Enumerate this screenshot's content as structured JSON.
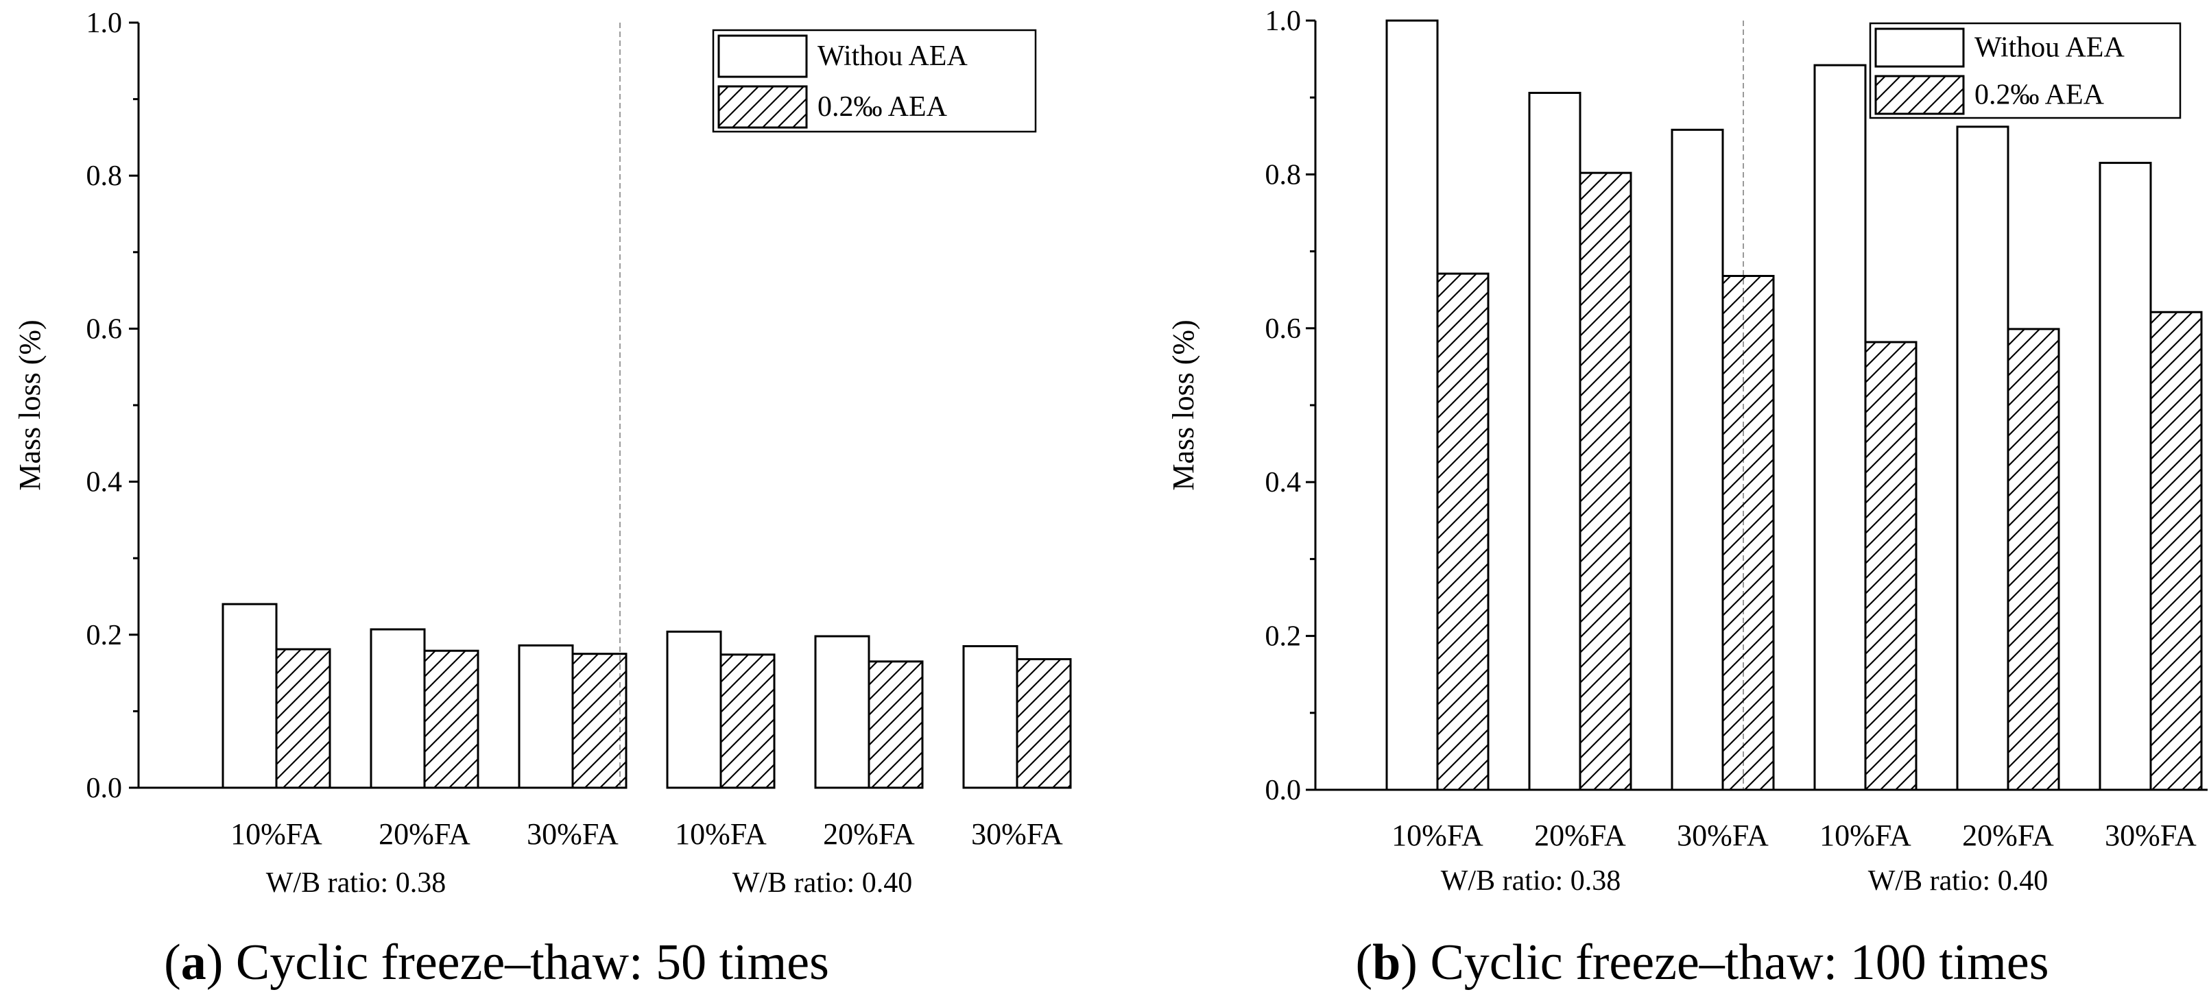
{
  "chart_data": [
    {
      "type": "bar",
      "panel_letter": "a",
      "caption": "Cyclic freeze–thaw: 50 times",
      "ylabel": "Mass loss (%)",
      "xlabel": "",
      "ylim": [
        0,
        1.0
      ],
      "yticks": [
        "0.0",
        "0.2",
        "0.4",
        "0.6",
        "0.8",
        "1.0"
      ],
      "groups": [
        {
          "label": "W/B ratio: 0.38",
          "categories": [
            "10%FA",
            "20%FA",
            "30%FA"
          ]
        },
        {
          "label": "W/B ratio: 0.40",
          "categories": [
            "10%FA",
            "20%FA",
            "30%FA"
          ]
        }
      ],
      "categories": [
        "10%FA",
        "20%FA",
        "30%FA",
        "10%FA",
        "20%FA",
        "30%FA"
      ],
      "series": [
        {
          "name": "Withou AEA",
          "pattern": "none",
          "values": [
            0.24,
            0.207,
            0.186,
            0.204,
            0.198,
            0.185
          ]
        },
        {
          "name": "0.2‰ AEA",
          "pattern": "hatch",
          "values": [
            0.181,
            0.179,
            0.175,
            0.174,
            0.165,
            0.168
          ]
        }
      ],
      "legend": "top-right"
    },
    {
      "type": "bar",
      "panel_letter": "b",
      "caption": "Cyclic freeze–thaw: 100 times",
      "ylabel": "Mass loss (%)",
      "xlabel": "",
      "ylim": [
        0,
        1.0
      ],
      "yticks": [
        "0.0",
        "0.2",
        "0.4",
        "0.6",
        "0.8",
        "1.0"
      ],
      "groups": [
        {
          "label": "W/B ratio: 0.38",
          "categories": [
            "10%FA",
            "20%FA",
            "30%FA"
          ]
        },
        {
          "label": "W/B ratio: 0.40",
          "categories": [
            "10%FA",
            "20%FA",
            "30%FA"
          ]
        }
      ],
      "categories": [
        "10%FA",
        "20%FA",
        "30%FA",
        "10%FA",
        "20%FA",
        "30%FA"
      ],
      "series": [
        {
          "name": "Withou AEA",
          "pattern": "none",
          "values": [
            1.0,
            0.906,
            0.858,
            0.942,
            0.862,
            0.815
          ]
        },
        {
          "name": "0.2‰ AEA",
          "pattern": "hatch",
          "values": [
            0.671,
            0.802,
            0.668,
            0.582,
            0.599,
            0.621
          ]
        }
      ],
      "legend": "top-right"
    }
  ]
}
